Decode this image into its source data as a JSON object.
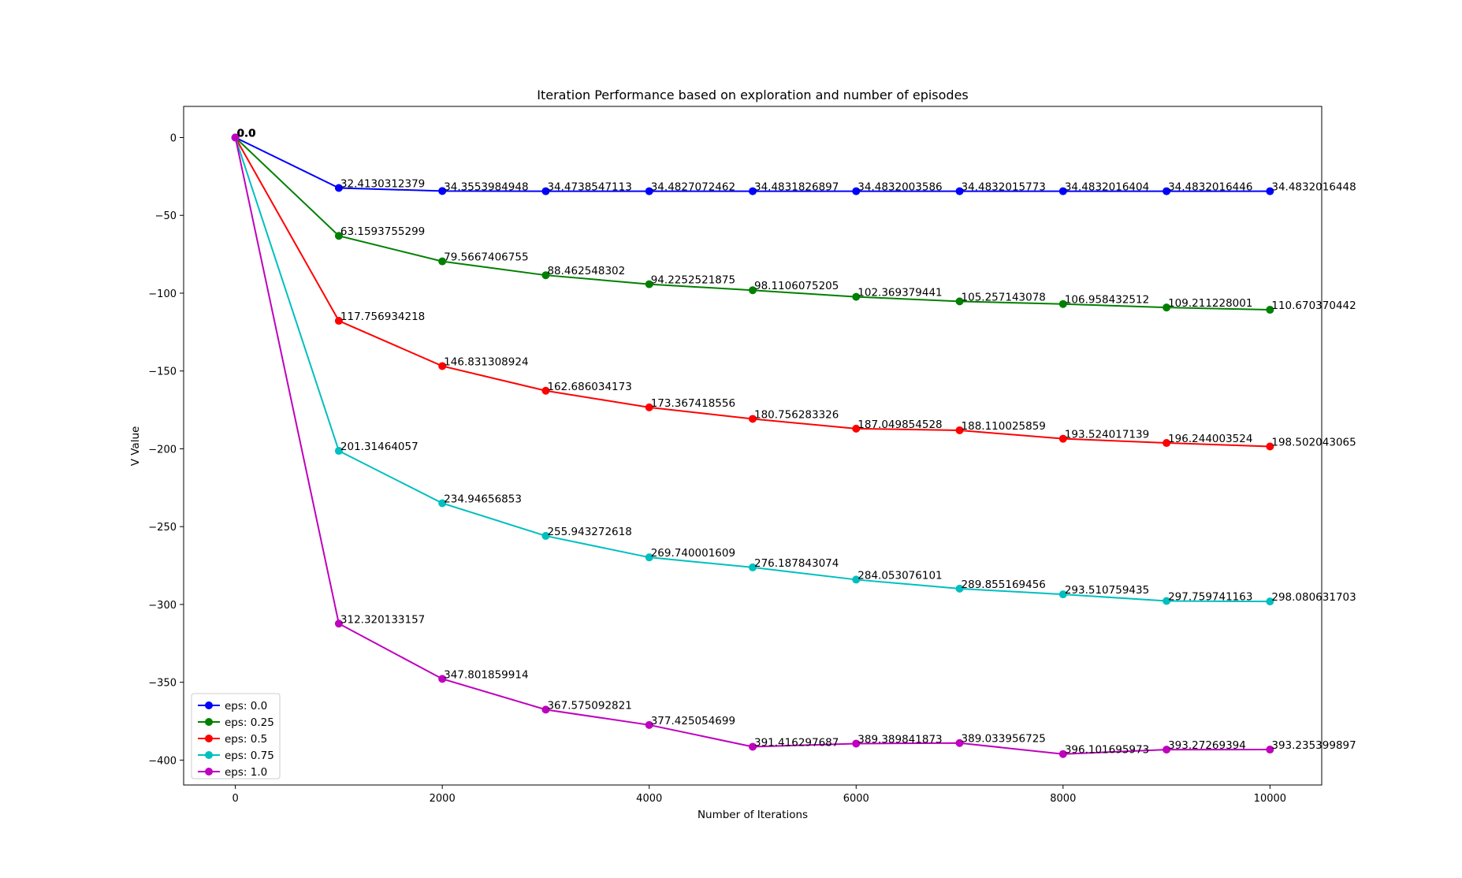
{
  "chart_data": {
    "type": "line",
    "title": "Iteration Performance based on exploration and number of episodes",
    "xlabel": "Number of Iterations",
    "ylabel": "V Value",
    "xlim": [
      -500,
      10500
    ],
    "ylim": [
      -416,
      20
    ],
    "xticks": [
      0,
      2000,
      4000,
      6000,
      8000,
      10000
    ],
    "yticks": [
      0,
      -50,
      -100,
      -150,
      -200,
      -250,
      -300,
      -350,
      -400
    ],
    "grid": false,
    "legend_position": "lower-left",
    "x": [
      0,
      1000,
      2000,
      3000,
      4000,
      5000,
      6000,
      7000,
      8000,
      9000,
      10000
    ],
    "series": [
      {
        "name": "eps: 0.0",
        "color": "#0000ff",
        "values": [
          0,
          -32.4130312379,
          -34.3553984948,
          -34.4738547113,
          -34.4827072462,
          -34.4831826897,
          -34.4832003586,
          -34.4832015773,
          -34.4832016404,
          -34.4832016446,
          -34.4832016448
        ],
        "labels": [
          "0.0",
          "32.4130312379",
          "34.3553984948",
          "34.4738547113",
          "34.4827072462",
          "34.4831826897",
          "34.4832003586",
          "34.4832015773",
          "34.4832016404",
          "34.4832016446",
          "34.4832016448"
        ]
      },
      {
        "name": "eps: 0.25",
        "color": "#008000",
        "values": [
          0,
          -63.1593755299,
          -79.5667406755,
          -88.462548302,
          -94.2252521875,
          -98.1106075205,
          -102.369379441,
          -105.257143078,
          -106.958432512,
          -109.211228001,
          -110.670370442
        ],
        "labels": [
          "0.0",
          "63.1593755299",
          "79.5667406755",
          "88.462548302",
          "94.2252521875",
          "98.1106075205",
          "102.369379441",
          "105.257143078",
          "106.958432512",
          "109.211228001",
          "110.670370442"
        ]
      },
      {
        "name": "eps: 0.5",
        "color": "#ff0000",
        "values": [
          0,
          -117.756934218,
          -146.831308924,
          -162.686034173,
          -173.367418556,
          -180.756283326,
          -187.049854528,
          -188.110025859,
          -193.524017139,
          -196.244003524,
          -198.502043065
        ],
        "labels": [
          "0.0",
          "117.756934218",
          "146.831308924",
          "162.686034173",
          "173.367418556",
          "180.756283326",
          "187.049854528",
          "188.110025859",
          "193.524017139",
          "196.244003524",
          "198.502043065"
        ]
      },
      {
        "name": "eps: 0.75",
        "color": "#00bfbf",
        "values": [
          0,
          -201.31464057,
          -234.94656853,
          -255.943272618,
          -269.740001609,
          -276.187843074,
          -284.053076101,
          -289.855169456,
          -293.510759435,
          -297.759741163,
          -298.080631703
        ],
        "labels": [
          "0.0",
          "201.31464057",
          "234.94656853",
          "255.943272618",
          "269.740001609",
          "276.187843074",
          "284.053076101",
          "289.855169456",
          "293.510759435",
          "297.759741163",
          "298.080631703"
        ]
      },
      {
        "name": "eps: 1.0",
        "color": "#bf00bf",
        "values": [
          0,
          -312.320133157,
          -347.801859914,
          -367.575092821,
          -377.425054699,
          -391.416297687,
          -389.389841873,
          -389.033956725,
          -396.101695973,
          -393.27269394,
          -393.235399897
        ],
        "labels": [
          "0.0",
          "312.320133157",
          "347.801859914",
          "367.575092821",
          "377.425054699",
          "391.416297687",
          "389.389841873",
          "389.033956725",
          "396.101695973",
          "393.27269394",
          "393.235399897"
        ]
      }
    ]
  }
}
